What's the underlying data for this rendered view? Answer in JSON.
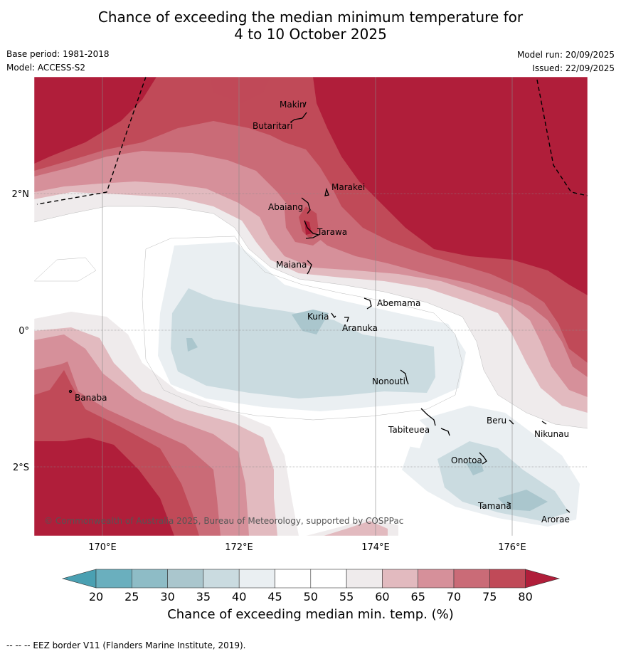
{
  "header": {
    "title_line1": "Chance of exceeding the median minimum temperature for",
    "title_line2": "4 to 10 October 2025",
    "base_period": "Base period: 1981-2018",
    "model": "Model: ACCESS-S2",
    "model_run": "Model run: 20/09/2025",
    "issued": "Issued: 22/09/2025"
  },
  "axes": {
    "lon_labels": [
      "170°E",
      "172°E",
      "174°E",
      "176°E"
    ],
    "lat_labels": [
      "2°N",
      "0°",
      "2°S"
    ]
  },
  "places": [
    "Makin",
    "Butaritari",
    "Marakei",
    "Abaiang",
    "Tarawa",
    "Maiana",
    "Abemama",
    "Kuria",
    "Aranuka",
    "Banaba",
    "Nonouti",
    "Tabiteuea",
    "Beru",
    "Nikunau",
    "Onotoa",
    "Tamana",
    "Arorae"
  ],
  "credit": "© Commonwealth of Australia 2025, Bureau of Meteorology, supported by COSPPac",
  "colorbar": {
    "ticks": [
      "20",
      "25",
      "30",
      "35",
      "40",
      "45",
      "50",
      "55",
      "60",
      "65",
      "70",
      "75",
      "80"
    ],
    "label": "Chance of exceeding median min. temp. (%)",
    "colors": {
      "below20": "#4aa0b2",
      "b20_25": "#6aafbe",
      "b25_30": "#8ebcc6",
      "b30_35": "#aac6cd",
      "b35_40": "#cadbe0",
      "b40_45": "#eaeff2",
      "b45_55": "#ffffff",
      "b55_60": "#efebec",
      "b60_65": "#e2babf",
      "b65_70": "#d6909a",
      "b70_75": "#ca6b77",
      "b75_80": "#c04a58",
      "above80": "#b01e3a"
    }
  },
  "footnote": "--  --  -- EEZ border V11 (Flanders Marine Institute, 2019)."
}
